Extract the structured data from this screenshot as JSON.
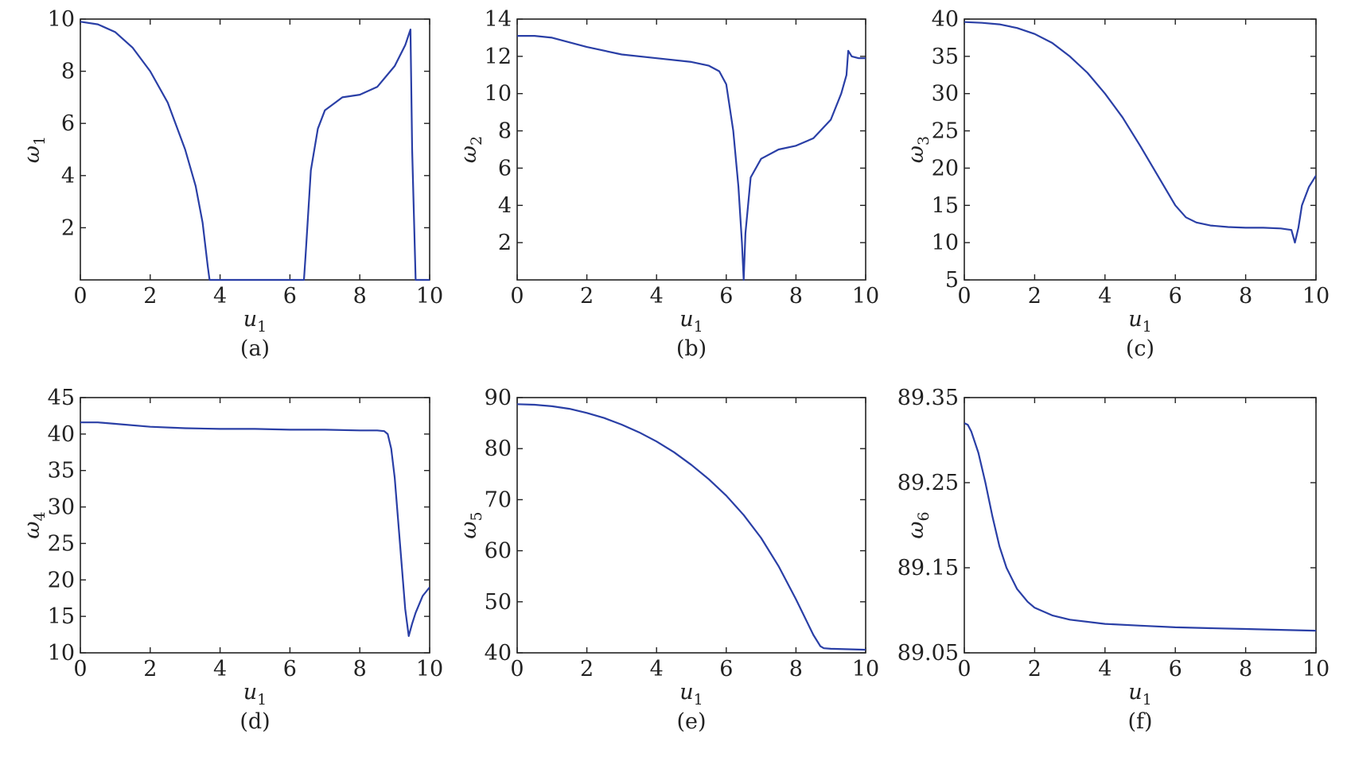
{
  "chart_data": [
    {
      "type": "line",
      "panel_label": "(a)",
      "xlabel": {
        "var": "u",
        "sub": "1"
      },
      "ylabel": {
        "var": "ω",
        "sub": "1"
      },
      "xlim": [
        0,
        10
      ],
      "ylim": [
        0,
        10
      ],
      "xticks": [
        "0",
        "2",
        "4",
        "6",
        "8",
        "10"
      ],
      "yticks": [
        "2",
        "4",
        "6",
        "8",
        "10"
      ],
      "line_color": "#2a3fa6",
      "series": [
        {
          "x": [
            0,
            0.5,
            1,
            1.5,
            2,
            2.5,
            3,
            3.3,
            3.5,
            3.65,
            3.7,
            6.4,
            6.45,
            6.6,
            6.8,
            7,
            7.5,
            8,
            8.5,
            9,
            9.3,
            9.45,
            9.5,
            9.6,
            10
          ],
          "y": [
            9.9,
            9.8,
            9.5,
            8.9,
            8.0,
            6.8,
            5.0,
            3.6,
            2.2,
            0.5,
            0,
            0,
            1.0,
            4.2,
            5.8,
            6.5,
            7.0,
            7.1,
            7.4,
            8.2,
            9.0,
            9.6,
            5.0,
            0,
            0
          ]
        }
      ]
    },
    {
      "type": "line",
      "panel_label": "(b)",
      "xlabel": {
        "var": "u",
        "sub": "1"
      },
      "ylabel": {
        "var": "ω",
        "sub": "2"
      },
      "xlim": [
        0,
        10
      ],
      "ylim": [
        0,
        14
      ],
      "xticks": [
        "0",
        "2",
        "4",
        "6",
        "8",
        "10"
      ],
      "yticks": [
        "2",
        "4",
        "6",
        "8",
        "10",
        "12",
        "14"
      ],
      "line_color": "#2a3fa6",
      "series": [
        {
          "x": [
            0,
            0.5,
            1,
            2,
            3,
            4,
            5,
            5.5,
            5.8,
            6.0,
            6.2,
            6.35,
            6.45,
            6.5,
            6.55,
            6.7,
            7,
            7.5,
            8,
            8.5,
            9,
            9.3,
            9.45,
            9.5,
            9.6,
            9.8,
            10
          ],
          "y": [
            13.1,
            13.1,
            13.0,
            12.5,
            12.1,
            11.9,
            11.7,
            11.5,
            11.2,
            10.5,
            8.0,
            5.0,
            2.0,
            0,
            2.5,
            5.5,
            6.5,
            7.0,
            7.2,
            7.6,
            8.6,
            10.0,
            11.0,
            12.3,
            12.0,
            11.9,
            11.9
          ]
        }
      ]
    },
    {
      "type": "line",
      "panel_label": "(c)",
      "xlabel": {
        "var": "u",
        "sub": "1"
      },
      "ylabel": {
        "var": "ω",
        "sub": "3"
      },
      "xlim": [
        0,
        10
      ],
      "ylim": [
        5,
        40
      ],
      "xticks": [
        "0",
        "2",
        "4",
        "6",
        "8",
        "10"
      ],
      "yticks": [
        "5",
        "10",
        "15",
        "20",
        "25",
        "30",
        "35",
        "40"
      ],
      "line_color": "#2a3fa6",
      "series": [
        {
          "x": [
            0,
            0.5,
            1,
            1.5,
            2,
            2.5,
            3,
            3.5,
            4,
            4.5,
            5,
            5.5,
            6,
            6.3,
            6.6,
            7,
            7.5,
            8,
            8.5,
            9,
            9.3,
            9.4,
            9.5,
            9.6,
            9.8,
            10
          ],
          "y": [
            39.6,
            39.5,
            39.3,
            38.8,
            38.0,
            36.8,
            35.0,
            32.8,
            30.0,
            26.8,
            23.0,
            19.0,
            15.0,
            13.4,
            12.7,
            12.3,
            12.1,
            12.0,
            12.0,
            11.9,
            11.7,
            10.0,
            12.0,
            15.0,
            17.5,
            19.0
          ]
        }
      ]
    },
    {
      "type": "line",
      "panel_label": "(d)",
      "xlabel": {
        "var": "u",
        "sub": "1"
      },
      "ylabel": {
        "var": "ω",
        "sub": "4"
      },
      "xlim": [
        0,
        10
      ],
      "ylim": [
        10,
        45
      ],
      "xticks": [
        "0",
        "2",
        "4",
        "6",
        "8",
        "10"
      ],
      "yticks": [
        "10",
        "15",
        "20",
        "25",
        "30",
        "35",
        "40",
        "45"
      ],
      "line_color": "#2a3fa6",
      "series": [
        {
          "x": [
            0,
            0.5,
            1,
            2,
            3,
            4,
            5,
            6,
            7,
            8,
            8.5,
            8.7,
            8.8,
            8.9,
            9.0,
            9.1,
            9.2,
            9.3,
            9.4,
            9.5,
            9.6,
            9.8,
            10
          ],
          "y": [
            41.6,
            41.6,
            41.4,
            41.0,
            40.8,
            40.7,
            40.7,
            40.6,
            40.6,
            40.5,
            40.5,
            40.4,
            40.0,
            38.0,
            34.0,
            28.0,
            22.0,
            16.0,
            12.3,
            14.0,
            15.5,
            17.8,
            19.0
          ]
        }
      ]
    },
    {
      "type": "line",
      "panel_label": "(e)",
      "xlabel": {
        "var": "u",
        "sub": "1"
      },
      "ylabel": {
        "var": "ω",
        "sub": "5"
      },
      "xlim": [
        0,
        10
      ],
      "ylim": [
        40,
        90
      ],
      "xticks": [
        "0",
        "2",
        "4",
        "6",
        "8",
        "10"
      ],
      "yticks": [
        "40",
        "50",
        "60",
        "70",
        "80",
        "90"
      ],
      "line_color": "#2a3fa6",
      "series": [
        {
          "x": [
            0,
            0.5,
            1,
            1.5,
            2,
            2.5,
            3,
            3.5,
            4,
            4.5,
            5,
            5.5,
            6,
            6.5,
            7,
            7.5,
            8,
            8.5,
            8.7,
            8.8,
            9,
            9.5,
            10
          ],
          "y": [
            88.7,
            88.6,
            88.3,
            87.8,
            87.0,
            86.0,
            84.7,
            83.2,
            81.4,
            79.3,
            76.8,
            74.0,
            70.8,
            67.0,
            62.5,
            57.0,
            50.5,
            43.5,
            41.3,
            40.9,
            40.8,
            40.7,
            40.6
          ]
        }
      ]
    },
    {
      "type": "line",
      "panel_label": "(f)",
      "xlabel": {
        "var": "u",
        "sub": "1"
      },
      "ylabel": {
        "var": "ω",
        "sub": "6"
      },
      "xlim": [
        0,
        10
      ],
      "ylim": [
        89.05,
        89.35
      ],
      "xticks": [
        "0",
        "2",
        "4",
        "6",
        "8",
        "10"
      ],
      "yticks": [
        "89.05",
        "89.15",
        "89.25",
        "89.35"
      ],
      "line_color": "#2a3fa6",
      "series": [
        {
          "x": [
            0,
            0.1,
            0.2,
            0.4,
            0.6,
            0.8,
            1.0,
            1.2,
            1.5,
            1.8,
            2.0,
            2.5,
            3,
            4,
            5,
            6,
            7,
            8,
            9,
            10
          ],
          "y": [
            89.32,
            89.318,
            89.31,
            89.285,
            89.25,
            89.21,
            89.175,
            89.15,
            89.125,
            89.11,
            89.103,
            89.094,
            89.089,
            89.084,
            89.082,
            89.08,
            89.079,
            89.078,
            89.077,
            89.076
          ]
        }
      ]
    }
  ]
}
